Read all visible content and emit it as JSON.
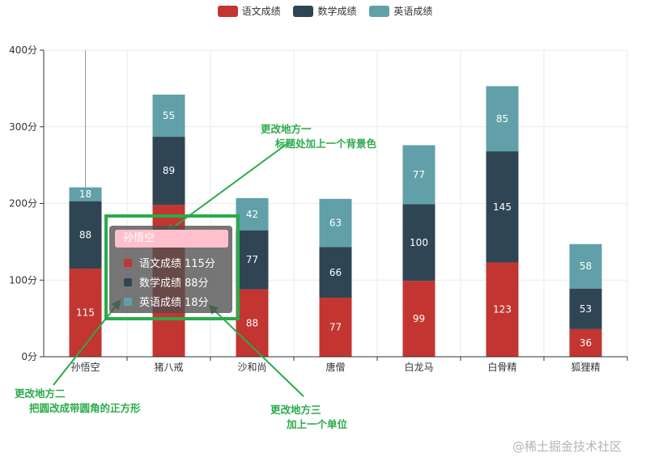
{
  "legend": [
    {
      "label": "语文成绩",
      "color": "#c23531"
    },
    {
      "label": "数学成绩",
      "color": "#2f4554"
    },
    {
      "label": "英语成绩",
      "color": "#61a0a8"
    }
  ],
  "chart_data": {
    "type": "bar",
    "stacked": true,
    "categories": [
      "孙悟空",
      "猪八戒",
      "沙和尚",
      "唐僧",
      "白龙马",
      "白骨精",
      "狐狸精"
    ],
    "series": [
      {
        "name": "语文成绩",
        "color": "#c23531",
        "values": [
          115,
          198,
          88,
          77,
          99,
          123,
          36
        ]
      },
      {
        "name": "数学成绩",
        "color": "#2f4554",
        "values": [
          88,
          89,
          77,
          66,
          100,
          145,
          53
        ]
      },
      {
        "name": "英语成绩",
        "color": "#61a0a8",
        "values": [
          18,
          55,
          42,
          63,
          77,
          85,
          58
        ]
      }
    ],
    "y_ticks": [
      "0分",
      "100分",
      "200分",
      "300分",
      "400分"
    ],
    "ylim": [
      0,
      400
    ],
    "y_tick_values": [
      0,
      100,
      200,
      300,
      400
    ],
    "grid": true,
    "legend_position": "top-center",
    "visible_labels": [
      [
        "115",
        null,
        "88",
        "77",
        "99",
        "123",
        "36"
      ],
      [
        "88",
        "89",
        "77",
        "66",
        "100",
        "145",
        "53"
      ],
      [
        "18",
        "55",
        "42",
        "63",
        "77",
        "85",
        "58"
      ]
    ],
    "axis_pointer_category": "孙悟空"
  },
  "tooltip": {
    "title": "孙悟空",
    "rows": [
      {
        "label": "语文成绩",
        "value": "115分",
        "color": "#c23531"
      },
      {
        "label": "数学成绩",
        "value": "88分",
        "color": "#2f4554"
      },
      {
        "label": "英语成绩",
        "value": "18分",
        "color": "#61a0a8"
      }
    ],
    "title_bg": "#ffc0cb",
    "highlight_color": "#2aab4a"
  },
  "annotations": {
    "one_line1": "更改地方一",
    "one_line2": "标题处加上一个背景色",
    "two_line1": "更改地方二",
    "two_line2": "把圆改成带圆角的正方形",
    "three_line1": "更改地方三",
    "three_line2": "加上一个单位"
  },
  "watermark": "@稀土掘金技术社区"
}
